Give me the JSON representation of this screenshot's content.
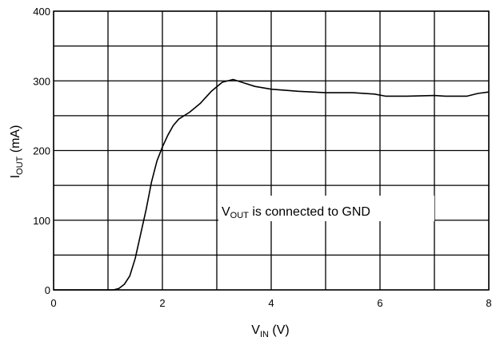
{
  "chart_data": {
    "type": "line",
    "xlabel": {
      "main": "V",
      "sub": "IN",
      "unit": " (V)"
    },
    "ylabel": {
      "main": "I",
      "sub": "OUT",
      "unit": " (mA)"
    },
    "xlim": [
      0,
      8
    ],
    "ylim": [
      0,
      400
    ],
    "x_major_ticks": [
      0,
      2,
      4,
      6,
      8
    ],
    "x_tick_labels": [
      "0",
      "2",
      "4",
      "6",
      "8"
    ],
    "x_grid": [
      0,
      1,
      2,
      3,
      4,
      5,
      6,
      7,
      8
    ],
    "y_major_ticks": [
      0,
      100,
      200,
      300,
      400
    ],
    "y_tick_labels": [
      "0",
      "100",
      "200",
      "300",
      "400"
    ],
    "y_grid": [
      0,
      50,
      100,
      150,
      200,
      250,
      300,
      350,
      400
    ],
    "grid": true,
    "annotation": {
      "main": "V",
      "sub": "OUT",
      "rest": " is connected to GND"
    },
    "series": [
      {
        "color": "#000000",
        "points": [
          [
            0,
            0
          ],
          [
            1.0,
            0
          ],
          [
            1.1,
            0
          ],
          [
            1.2,
            2
          ],
          [
            1.3,
            8
          ],
          [
            1.4,
            20
          ],
          [
            1.5,
            45
          ],
          [
            1.6,
            80
          ],
          [
            1.7,
            115
          ],
          [
            1.8,
            155
          ],
          [
            1.9,
            185
          ],
          [
            2.0,
            205
          ],
          [
            2.1,
            222
          ],
          [
            2.2,
            236
          ],
          [
            2.3,
            245
          ],
          [
            2.5,
            255
          ],
          [
            2.7,
            268
          ],
          [
            2.9,
            285
          ],
          [
            3.1,
            298
          ],
          [
            3.3,
            302
          ],
          [
            3.5,
            297
          ],
          [
            3.7,
            292
          ],
          [
            4.0,
            288
          ],
          [
            4.5,
            285
          ],
          [
            5.0,
            283
          ],
          [
            5.5,
            283
          ],
          [
            5.9,
            281
          ],
          [
            6.1,
            278
          ],
          [
            6.5,
            278
          ],
          [
            7.0,
            279
          ],
          [
            7.2,
            278
          ],
          [
            7.6,
            278
          ],
          [
            7.8,
            282
          ],
          [
            8.0,
            284
          ]
        ]
      }
    ]
  }
}
